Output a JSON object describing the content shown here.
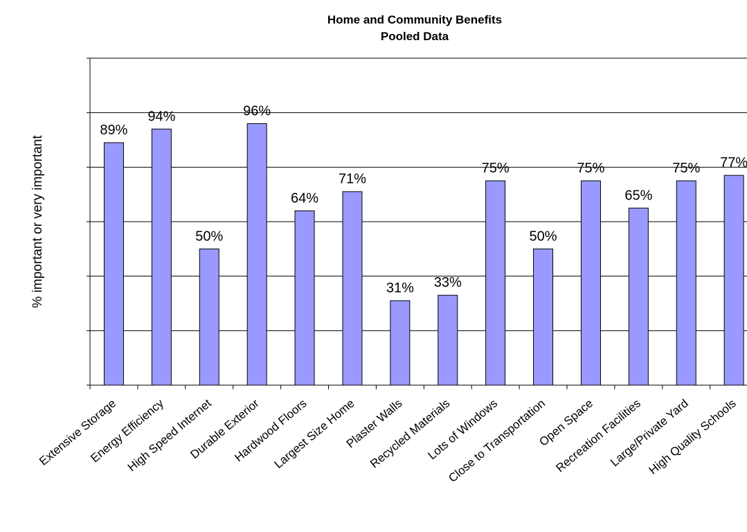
{
  "chart_data": {
    "type": "bar",
    "title": "Home and Community Benefits",
    "subtitle": "Pooled Data",
    "xlabel": "",
    "ylabel": "% important or very important",
    "ylim": [
      0,
      120
    ],
    "y_gridline_step": 20,
    "grid": true,
    "legend": "none",
    "bar_color": "#9999ff",
    "categories": [
      "Extensive Storage",
      "Energy Efficiency",
      "High Speed Internet",
      "Durable Exterior",
      "Hardwood Floors",
      "Largest Size Home",
      "Plaster Walls",
      "Recycled Materials",
      "Lots of Windows",
      "Close to Transportation",
      "Open Space",
      "Recreation Facilities",
      "Large/Private Yard",
      "High Quality Schools"
    ],
    "values": [
      89,
      94,
      50,
      96,
      64,
      71,
      31,
      33,
      75,
      50,
      75,
      65,
      75,
      77
    ],
    "data_labels": [
      "89%",
      "94%",
      "50%",
      "96%",
      "64%",
      "71%",
      "31%",
      "33%",
      "75%",
      "50%",
      "75%",
      "65%",
      "75%",
      "77%"
    ]
  }
}
